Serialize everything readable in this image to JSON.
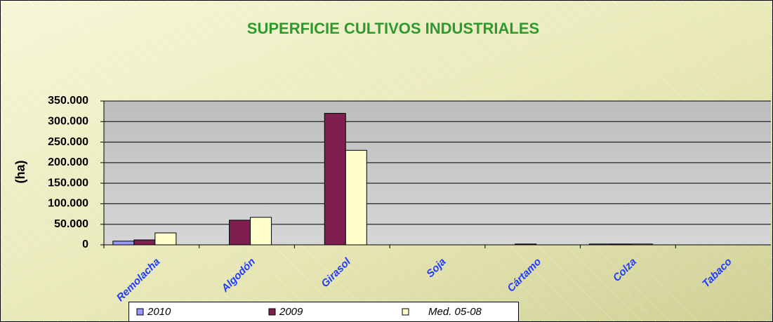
{
  "chart_data": {
    "type": "bar",
    "title": "SUPERFICIE CULTIVOS INDUSTRIALES",
    "y_label": "(ha)",
    "categories": [
      "Remolacha",
      "Algodón",
      "Girasol",
      "Soja",
      "Cártamo",
      "Colza",
      "Tabaco"
    ],
    "series": [
      {
        "name": "2010",
        "color": "#9999ff",
        "values": [
          9000,
          null,
          null,
          null,
          null,
          2000,
          null
        ]
      },
      {
        "name": "2009",
        "color": "#7f1f4f",
        "values": [
          12000,
          60000,
          320000,
          null,
          2000,
          2000,
          null
        ]
      },
      {
        "name": "Med. 05-08",
        "color": "#ffffcc",
        "values": [
          29000,
          67000,
          230000,
          null,
          null,
          2000,
          null
        ]
      }
    ],
    "ylim": [
      0,
      350000
    ],
    "yticks": [
      0,
      {
        "value": 50000,
        "label": "50.000"
      },
      {
        "value": 100000,
        "label": "100.000"
      },
      {
        "value": 150000,
        "label": "150.000"
      },
      {
        "value": 200000,
        "label": "200.000"
      },
      {
        "value": 250000,
        "label": "250.000"
      },
      {
        "value": 300000,
        "label": "300.000"
      },
      {
        "value": 350000,
        "label": "350.000"
      }
    ],
    "grid": true,
    "legend": "bottom"
  }
}
